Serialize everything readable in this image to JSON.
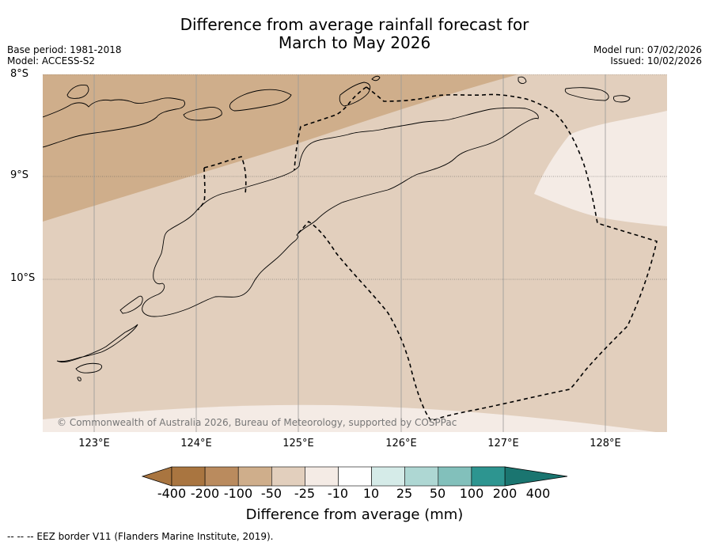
{
  "title": {
    "line1": "Difference from average rainfall forecast for",
    "line2": "March to May 2026"
  },
  "meta_left": {
    "base_period": "Base period: 1981-2018",
    "model": "Model: ACCESS-S2"
  },
  "meta_right": {
    "model_run": "Model run: 07/02/2026",
    "issued": "Issued: 10/02/2026"
  },
  "map": {
    "lat_labels": [
      "8°S",
      "9°S",
      "10°S"
    ],
    "lon_labels": [
      "123°E",
      "124°E",
      "125°E",
      "126°E",
      "127°E",
      "128°E"
    ],
    "copyright": "© Commonwealth of Australia 2026, Bureau of Meteorology, supported by COSPPac"
  },
  "colorbar": {
    "title": "Difference from average (mm)",
    "labels": [
      "-400",
      "-200",
      "-100",
      "-50",
      "-25",
      "-10",
      "10",
      "25",
      "50",
      "100",
      "200",
      "400"
    ],
    "colors": [
      "#a97540",
      "#ba8b5e",
      "#cfae8b",
      "#e2cfbd",
      "#f4ebe5",
      "#ffffff",
      "#d5ebe8",
      "#aed7d3",
      "#82c0bb",
      "#57a6a2",
      "#2d9590",
      "#1a7570"
    ]
  },
  "footer": {
    "legend": "--  --  -- EEZ border V11 (Flanders Marine Institute, 2019)."
  }
}
